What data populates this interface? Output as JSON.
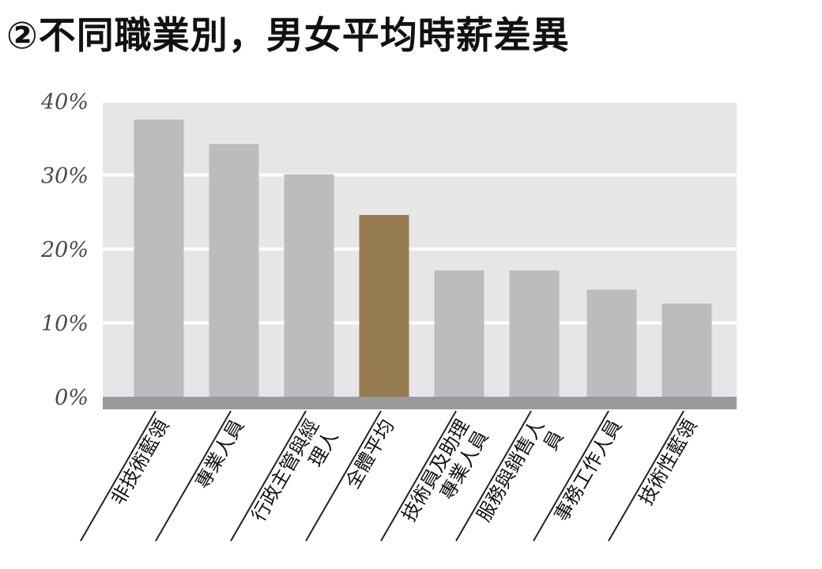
{
  "header": {
    "title": "②不同職業別，男女平均時薪差異"
  },
  "colors": {
    "plot_background": "#e6e6e8",
    "gridline": "#ffffff",
    "baseline": "#9a9a9e",
    "bar_default": "#bcbcbf",
    "bar_highlight": "#967b4f"
  },
  "chart_data": {
    "type": "bar",
    "title": "②不同職業別，男女平均時薪差異",
    "xlabel": "",
    "ylabel": "",
    "ylim": [
      0,
      40
    ],
    "yticks": [
      0,
      10,
      20,
      30,
      40
    ],
    "ytick_labels": [
      "0%",
      "10%",
      "20%",
      "30%",
      "40%"
    ],
    "grid": true,
    "legend": "none",
    "categories": [
      [
        "非技術藍領"
      ],
      [
        "專業人員"
      ],
      [
        "行政主管與經",
        "理人"
      ],
      [
        "全體平均"
      ],
      [
        "技術員及助理",
        "專業人員"
      ],
      [
        "服務與銷售人",
        "員"
      ],
      [
        "事務工作人員"
      ],
      [
        "技術性藍領"
      ]
    ],
    "values": [
      37.5,
      34.2,
      30.1,
      24.6,
      17.1,
      17.1,
      14.5,
      12.6
    ],
    "highlight_index": 3
  }
}
